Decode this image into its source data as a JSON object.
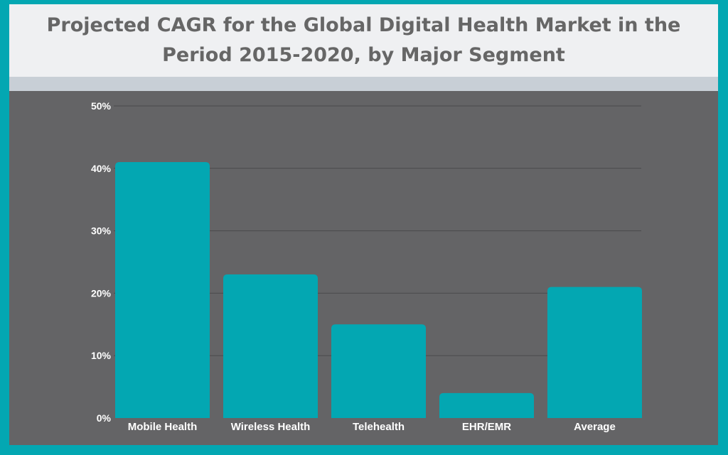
{
  "chart_data": {
    "type": "bar",
    "title": "Projected CAGR for the Global Digital Health Market in the Period 2015-2020, by Major Segment",
    "categories": [
      "Mobile Health",
      "Wireless Health",
      "Telehealth",
      "EHR/EMR",
      "Average"
    ],
    "values": [
      41,
      23,
      15,
      4,
      21
    ],
    "ylim": [
      0,
      50
    ],
    "yticks": [
      "0%",
      "10%",
      "20%",
      "30%",
      "40%",
      "50%"
    ],
    "grid": true,
    "colors": {
      "bar": "#03a7b2",
      "background": "#646466",
      "frame": "#03a7b2"
    }
  }
}
